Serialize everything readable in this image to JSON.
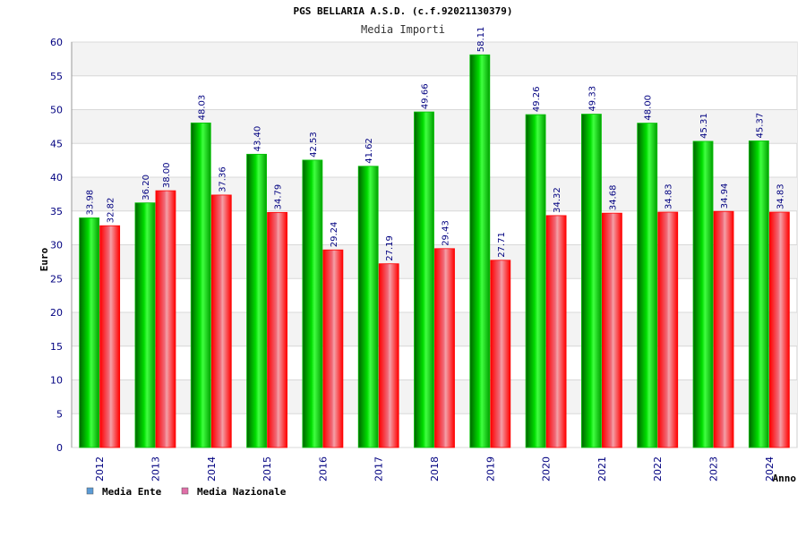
{
  "colors": {
    "ente": "#00c000",
    "nazionale": "#ff0000",
    "tick_text": "#000080",
    "value_text": "#000080",
    "band": "#f3f3f3",
    "grid": "#d8d8d8",
    "legend_ente": "#5b9bd5",
    "legend_nazionale": "#e06fa8"
  },
  "chart_data": {
    "type": "bar",
    "title": "PGS BELLARIA A.S.D. (c.f.92021130379)",
    "subtitle": "Media Importi",
    "xlabel": "Anno",
    "ylabel": "Euro",
    "ylim": [
      0,
      60
    ],
    "yticks": [
      0,
      5,
      10,
      15,
      20,
      25,
      30,
      35,
      40,
      45,
      50,
      55,
      60
    ],
    "grid": true,
    "legend_position": "bottom-left",
    "categories": [
      "2012",
      "2013",
      "2014",
      "2015",
      "2016",
      "2017",
      "2018",
      "2019",
      "2020",
      "2021",
      "2022",
      "2023",
      "2024"
    ],
    "series": [
      {
        "name": "Media Ente",
        "values": [
          33.98,
          36.2,
          48.03,
          43.4,
          42.53,
          41.62,
          49.66,
          58.11,
          49.26,
          49.33,
          48.0,
          45.31,
          45.37
        ],
        "labels": [
          "33.98",
          "36.20",
          "48.03",
          "43.40",
          "42.53",
          "41.62",
          "49.66",
          "58.11",
          "49.26",
          "49.33",
          "48.00",
          "45.31",
          "45.37"
        ]
      },
      {
        "name": "Media Nazionale",
        "values": [
          32.82,
          38.0,
          37.36,
          34.79,
          29.24,
          27.19,
          29.43,
          27.71,
          34.32,
          34.68,
          34.83,
          34.94,
          34.83
        ],
        "labels": [
          "32.82",
          "38.00",
          "37.36",
          "34.79",
          "29.24",
          "27.19",
          "29.43",
          "27.71",
          "34.32",
          "34.68",
          "34.83",
          "34.94",
          "34.83"
        ]
      }
    ]
  }
}
